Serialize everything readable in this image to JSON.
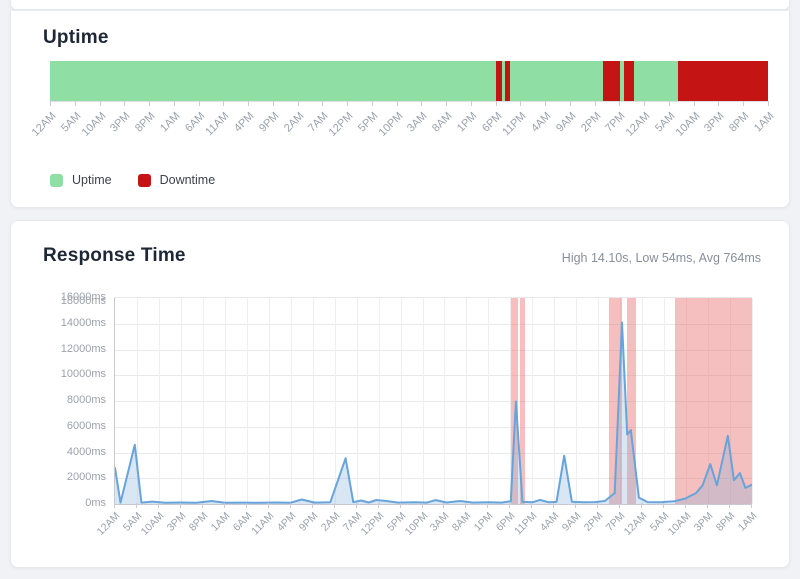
{
  "page": {
    "background": "#f0f2f5",
    "card_background": "#ffffff"
  },
  "chart_data": [
    {
      "id": "uptime",
      "type": "status-bar",
      "title": "Uptime",
      "colors": {
        "uptime": "#8fdfa5",
        "downtime": "#c51414"
      },
      "legend": [
        {
          "label": "Uptime",
          "color": "#8fdfa5"
        },
        {
          "label": "Downtime",
          "color": "#c51414"
        }
      ],
      "x_tick_labels": [
        "12AM",
        "5AM",
        "10AM",
        "3PM",
        "8PM",
        "1AM",
        "6AM",
        "11AM",
        "4PM",
        "9PM",
        "2AM",
        "7AM",
        "12PM",
        "5PM",
        "10PM",
        "3AM",
        "8AM",
        "1PM",
        "6PM",
        "11PM",
        "4AM",
        "9AM",
        "2PM",
        "7PM",
        "12AM",
        "5AM",
        "10AM",
        "3PM",
        "8PM",
        "1AM"
      ],
      "x_tick_interval_hours": 5,
      "downtime_segments_pct": [
        [
          62.1,
          0.9
        ],
        [
          63.4,
          0.7
        ],
        [
          77.0,
          2.4
        ],
        [
          79.9,
          1.5
        ],
        [
          87.5,
          12.5
        ]
      ]
    },
    {
      "id": "response-time",
      "type": "area",
      "title": "Response Time",
      "stats_summary": "High 14.10s, Low 54ms, Avg 764ms",
      "high_ms": 14100,
      "low_ms": 54,
      "avg_ms": 764,
      "y_max": 16000,
      "y_tick_step": 2000,
      "y_tick_labels": [
        "0ms",
        "2000ms",
        "4000ms",
        "6000ms",
        "8000ms",
        "10000ms",
        "12000ms",
        "14000ms",
        "16000ms"
      ],
      "y_overlap_glitch_label": "18000ms",
      "x_tick_labels": [
        "12AM",
        "5AM",
        "10AM",
        "3PM",
        "8PM",
        "1AM",
        "6AM",
        "11AM",
        "4PM",
        "9PM",
        "2AM",
        "7AM",
        "12PM",
        "5PM",
        "10PM",
        "3AM",
        "8AM",
        "1PM",
        "6PM",
        "11PM",
        "4AM",
        "9AM",
        "2PM",
        "7PM",
        "12AM",
        "5AM",
        "10AM",
        "3PM",
        "8PM",
        "1AM"
      ],
      "line_color": "#68a3da",
      "fill_color": "rgba(130,175,220,0.30)",
      "downtime_band_color": "rgba(233,114,114,0.45)",
      "downtime_bands_pct": [
        [
          62.2,
          1.1
        ],
        [
          63.6,
          0.7
        ],
        [
          77.5,
          2.1
        ],
        [
          80.4,
          1.4
        ],
        [
          87.9,
          12.1
        ]
      ],
      "points_tick_ms": [
        [
          0,
          2800
        ],
        [
          0.25,
          110
        ],
        [
          0.9,
          4600
        ],
        [
          1.2,
          110
        ],
        [
          1.7,
          190
        ],
        [
          2.3,
          90
        ],
        [
          3,
          120
        ],
        [
          3.7,
          100
        ],
        [
          4.4,
          230
        ],
        [
          5,
          100
        ],
        [
          5.8,
          110
        ],
        [
          6.6,
          95
        ],
        [
          7.3,
          120
        ],
        [
          8,
          100
        ],
        [
          8.5,
          350
        ],
        [
          9.1,
          110
        ],
        [
          9.8,
          130
        ],
        [
          10.5,
          3550
        ],
        [
          10.85,
          140
        ],
        [
          11.2,
          270
        ],
        [
          11.55,
          120
        ],
        [
          11.9,
          310
        ],
        [
          12.3,
          240
        ],
        [
          12.9,
          110
        ],
        [
          13.6,
          130
        ],
        [
          14.2,
          110
        ],
        [
          14.6,
          300
        ],
        [
          15.1,
          115
        ],
        [
          15.7,
          230
        ],
        [
          16.3,
          105
        ],
        [
          17,
          130
        ],
        [
          17.6,
          110
        ],
        [
          18.02,
          220
        ],
        [
          18.25,
          7950
        ],
        [
          18.55,
          160
        ],
        [
          19,
          130
        ],
        [
          19.35,
          320
        ],
        [
          19.75,
          130
        ],
        [
          20.1,
          160
        ],
        [
          20.45,
          3750
        ],
        [
          20.8,
          170
        ],
        [
          21.3,
          130
        ],
        [
          21.85,
          150
        ],
        [
          22.3,
          230
        ],
        [
          22.75,
          850
        ],
        [
          23.08,
          14100
        ],
        [
          23.32,
          5400
        ],
        [
          23.48,
          5750
        ],
        [
          23.85,
          500
        ],
        [
          24.25,
          150
        ],
        [
          24.85,
          135
        ],
        [
          25.45,
          210
        ],
        [
          25.95,
          420
        ],
        [
          26.45,
          850
        ],
        [
          26.75,
          1450
        ],
        [
          27.1,
          3100
        ],
        [
          27.4,
          1450
        ],
        [
          27.9,
          5300
        ],
        [
          28.18,
          1850
        ],
        [
          28.45,
          2400
        ],
        [
          28.7,
          1250
        ],
        [
          29,
          1500
        ]
      ]
    }
  ]
}
